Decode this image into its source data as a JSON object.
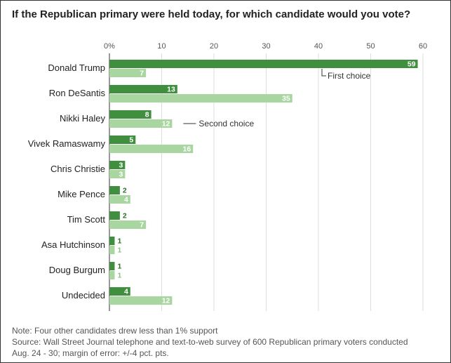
{
  "title": "If the Republican primary were held today, for which candidate would you vote?",
  "chart_data": {
    "type": "bar",
    "orientation": "horizontal",
    "title": "If the Republican primary were held today, for which candidate would you vote?",
    "categories": [
      "Donald Trump",
      "Ron DeSantis",
      "Nikki Haley",
      "Vivek Ramaswamy",
      "Chris Christie",
      "Mike Pence",
      "Tim Scott",
      "Asa Hutchinson",
      "Doug Burgum",
      "Undecided"
    ],
    "series": [
      {
        "name": "First choice",
        "color": "#3f8f3f",
        "label_color": "#2e6e2e",
        "values": [
          59,
          13,
          8,
          5,
          3,
          2,
          2,
          1,
          1,
          4
        ]
      },
      {
        "name": "Second choice",
        "color": "#a8d5a0",
        "label_color": "#8fbf87",
        "values": [
          7,
          35,
          12,
          16,
          3,
          4,
          7,
          1,
          1,
          12
        ]
      }
    ],
    "xlim": [
      0,
      60
    ],
    "xticks": [
      0,
      10,
      20,
      30,
      40,
      50,
      60
    ],
    "xtick_labels": [
      "0%",
      "10",
      "20",
      "30",
      "40",
      "50",
      "60"
    ],
    "annotations": {
      "first_choice": "First choice",
      "second_choice": "Second choice"
    }
  },
  "notes": {
    "note": "Note: Four other candidates drew less than 1% support",
    "source_line1": "Source: Wall Street Journal telephone and text-to-web survey of 600 Republican primary voters conducted",
    "source_line2": "Aug. 24 - 30; margin of error: +/-4 pct. pts."
  }
}
